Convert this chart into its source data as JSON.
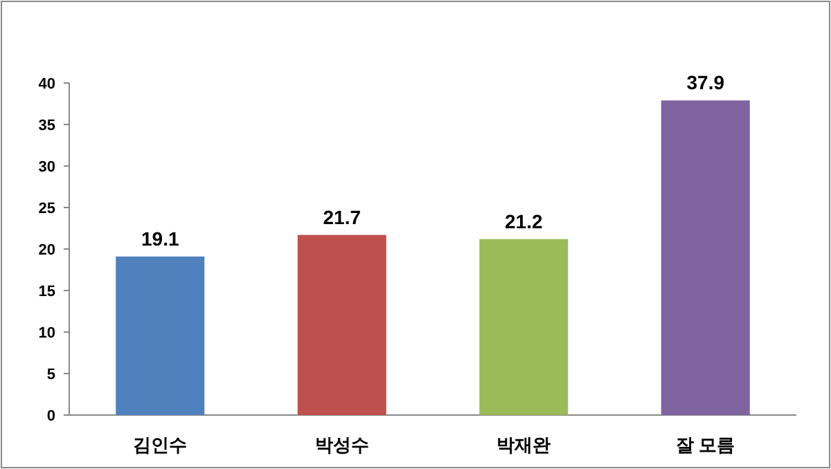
{
  "chart_data": {
    "type": "bar",
    "categories": [
      "김인수",
      "박성수",
      "박재완",
      "잘 모름"
    ],
    "values": [
      19.1,
      21.7,
      21.2,
      37.9
    ],
    "colors": [
      "#4f81bd",
      "#c0504d",
      "#9bbb59",
      "#8064a2"
    ],
    "ylim": [
      0,
      40
    ],
    "yticks": [
      0,
      5,
      10,
      15,
      20,
      25,
      30,
      35,
      40
    ],
    "data_labels": true
  }
}
